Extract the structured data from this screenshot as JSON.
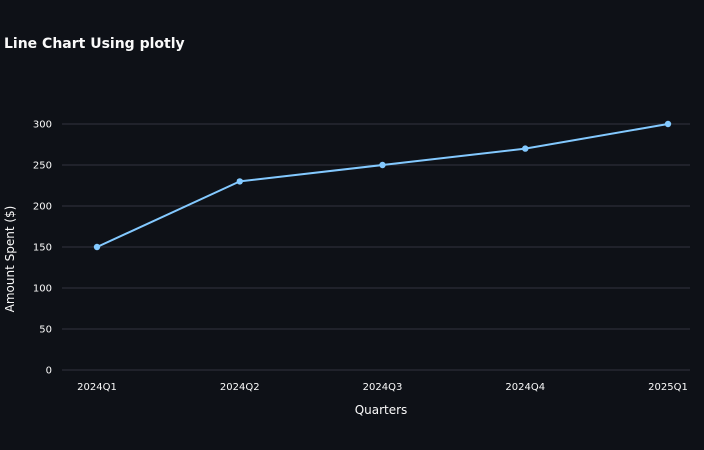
{
  "chart_data": {
    "type": "line",
    "title": "Line Chart Using plotly",
    "xlabel": "Quarters",
    "ylabel": "Amount Spent ($)",
    "categories": [
      "2024Q1",
      "2024Q2",
      "2024Q3",
      "2024Q4",
      "2025Q1"
    ],
    "series": [
      {
        "values": [
          150,
          230,
          250,
          270,
          300
        ],
        "color": "#83c9ff"
      }
    ],
    "yticks": [
      0,
      50,
      100,
      150,
      200,
      250,
      300
    ],
    "ylim": [
      0,
      300
    ],
    "grid": true,
    "markers": true,
    "colors": {
      "background": "#0e1117",
      "grid": "#31333f",
      "text": "#fafafa",
      "line": "#83c9ff"
    }
  }
}
